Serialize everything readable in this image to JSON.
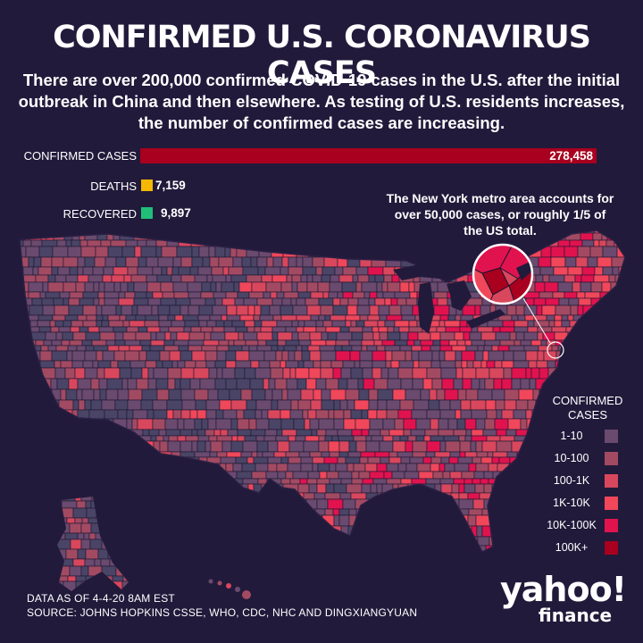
{
  "title": "CONFIRMED U.S. CORONAVIRUS CASES",
  "subtitle": "There are over 200,000 confirmed COVID-19 cases in the U.S. after the initial outbreak in China and then elsewhere. As testing of U.S. residents increases, the number of confirmed cases are increasing.",
  "stats": {
    "cases": {
      "label": "CONFIRMED CASES",
      "value": "278,458",
      "color": "#a8001e"
    },
    "deaths": {
      "label": "DEATHS",
      "value": "7,159",
      "color": "#f5b800"
    },
    "recovered": {
      "label": "RECOVERED",
      "value": "9,897",
      "color": "#1fbf7a"
    }
  },
  "callout": "The New York metro area accounts for over 50,000 cases, or roughly 1/5 of the US total.",
  "legend": {
    "title": "CONFIRMED CASES",
    "items": [
      {
        "label": "1-10",
        "color": "#6a4a6e"
      },
      {
        "label": "10-100",
        "color": "#a34a63"
      },
      {
        "label": "100-1K",
        "color": "#d9475d"
      },
      {
        "label": "1K-10K",
        "color": "#f0475a"
      },
      {
        "label": "10K-100K",
        "color": "#e0134f"
      },
      {
        "label": "100K+",
        "color": "#a8001e"
      }
    ]
  },
  "map_colors": {
    "no_data": "#4a4466",
    "county_line": "#1c1530",
    "background": "#221a3b"
  },
  "footer": {
    "date": "DATA AS OF 4-4-20 8AM  EST",
    "source": "SOURCE:  JOHNS HOPKINS CSSE, WHO, CDC, NHC AND DINGXIANGYUAN"
  },
  "logo": {
    "name": "yahoo!",
    "sub": "finance"
  }
}
